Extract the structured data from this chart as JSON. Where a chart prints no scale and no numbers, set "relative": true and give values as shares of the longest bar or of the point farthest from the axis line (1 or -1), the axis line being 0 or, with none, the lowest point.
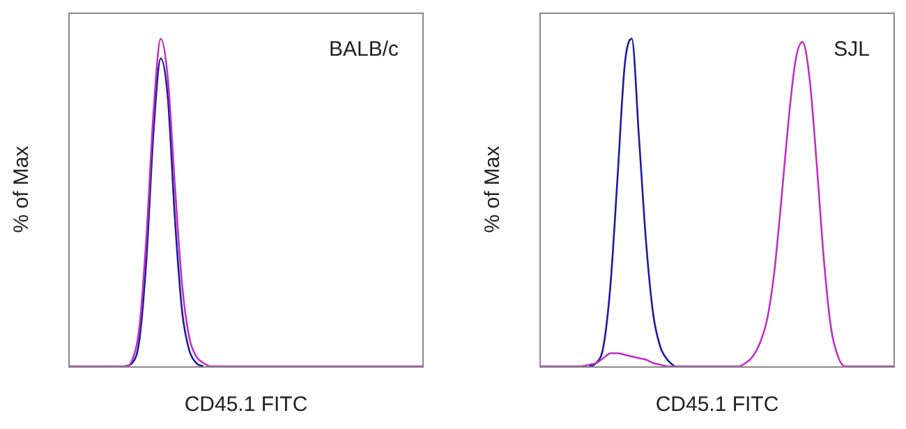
{
  "chart_data": [
    {
      "type": "line",
      "relative": true,
      "xlabel": "CD45.1 FITC",
      "ylabel": "% of Max",
      "annotations": [
        "BALB/c"
      ],
      "legend": false,
      "marker": "none",
      "categories": [
        null,
        null,
        null,
        null,
        null,
        null,
        null,
        null,
        null,
        null,
        null,
        null,
        null,
        null,
        null,
        null,
        null,
        null,
        null,
        null,
        null,
        null,
        null,
        null,
        null,
        null,
        null,
        null,
        null,
        null,
        null,
        null,
        null,
        null,
        null,
        null,
        null,
        null,
        null,
        null,
        null,
        null,
        null,
        null,
        null,
        null,
        null,
        null,
        null,
        null,
        null
      ],
      "series": [
        {
          "color": "#1a1aa0",
          "values": [
            null,
            null,
            null,
            null,
            null,
            null,
            null,
            null,
            0,
            0.01,
            0.08,
            0.33,
            0.72,
            0.94,
            0.82,
            0.45,
            0.17,
            0.05,
            0.01,
            0,
            null,
            null,
            null,
            null,
            null,
            null,
            null,
            null,
            null,
            null,
            null,
            null,
            null,
            null,
            null,
            null,
            null,
            null,
            null,
            null,
            null,
            null,
            null,
            null,
            null,
            null,
            null,
            null,
            null,
            null,
            null
          ]
        },
        {
          "color": "#c030c0",
          "values": [
            0,
            0,
            0,
            0,
            0,
            0,
            0,
            0,
            0,
            0.02,
            0.12,
            0.4,
            0.78,
            1,
            0.88,
            0.55,
            0.25,
            0.09,
            0.03,
            0.01,
            0,
            0,
            0,
            0,
            0,
            0,
            0,
            0,
            0,
            0,
            0,
            0,
            0,
            0,
            0,
            0,
            0,
            0,
            0,
            0,
            0,
            0,
            0,
            0,
            0,
            0,
            0,
            0,
            0,
            0,
            0
          ]
        }
      ]
    },
    {
      "type": "line",
      "relative": true,
      "xlabel": "CD45.1 FITC",
      "ylabel": "% of Max",
      "annotations": [
        "SJL"
      ],
      "legend": false,
      "marker": "none",
      "categories": [
        null,
        null,
        null,
        null,
        null,
        null,
        null,
        null,
        null,
        null,
        null,
        null,
        null,
        null,
        null,
        null,
        null,
        null,
        null,
        null,
        null,
        null,
        null,
        null,
        null,
        null,
        null,
        null,
        null,
        null,
        null,
        null,
        null,
        null,
        null,
        null,
        null,
        null,
        null,
        null,
        null,
        null,
        null,
        null,
        null,
        null,
        null,
        null,
        null,
        null,
        null
      ],
      "series": [
        {
          "color": "#1a1aa0",
          "values": [
            null,
            null,
            null,
            null,
            null,
            null,
            null,
            0,
            0.01,
            0.06,
            0.25,
            0.58,
            0.92,
            1,
            0.7,
            0.38,
            0.16,
            0.06,
            0.02,
            0,
            null,
            null,
            null,
            null,
            null,
            null,
            null,
            null,
            null,
            null,
            null,
            null,
            null,
            null,
            null,
            null,
            null,
            null,
            null,
            null,
            null,
            null,
            null,
            null,
            null,
            null,
            null,
            null,
            null,
            null,
            null
          ]
        },
        {
          "color": "#c030c0",
          "values": [
            0,
            0,
            0,
            0,
            0,
            0,
            0,
            0.005,
            0.01,
            0.025,
            0.04,
            0.04,
            0.035,
            0.03,
            0.025,
            0.02,
            0.01,
            0.005,
            0,
            0,
            0,
            0,
            0,
            0,
            0,
            0,
            0,
            0,
            0,
            0.01,
            0.03,
            0.07,
            0.14,
            0.28,
            0.5,
            0.74,
            0.93,
            0.99,
            0.88,
            0.62,
            0.33,
            0.12,
            0.03,
            0,
            0,
            0,
            0,
            0,
            0,
            0,
            0
          ]
        }
      ]
    }
  ]
}
